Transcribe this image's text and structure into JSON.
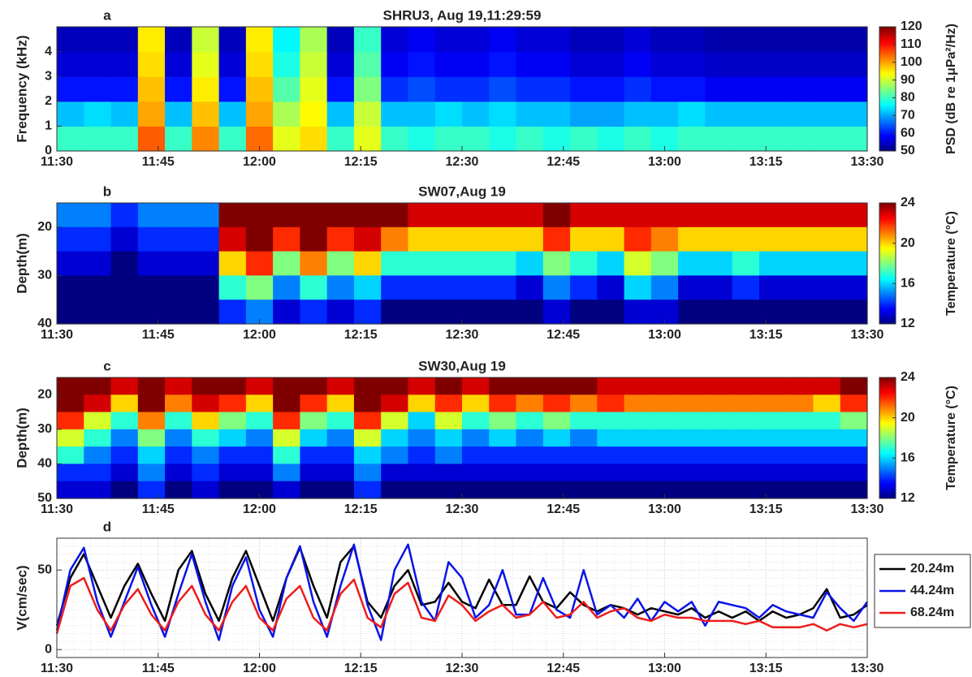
{
  "chart_data": [
    {
      "type": "heatmap",
      "panel_label": "a",
      "title": "SHRU3, Aug 19,11:29:59",
      "y_label": "Frequency (kHz)",
      "colorbar_label": "PSD (dB re 1μPa²/Hz)",
      "colormap": "jet",
      "xlim": [
        690,
        810
      ],
      "xticks": [
        {
          "value": 690,
          "label": "11:30"
        },
        {
          "value": 705,
          "label": "11:45"
        },
        {
          "value": 720,
          "label": "12:00"
        },
        {
          "value": 735,
          "label": "12:15"
        },
        {
          "value": 750,
          "label": "12:30"
        },
        {
          "value": 765,
          "label": "12:45"
        },
        {
          "value": 780,
          "label": "13:00"
        },
        {
          "value": 795,
          "label": "13:15"
        },
        {
          "value": 810,
          "label": "13:30"
        }
      ],
      "ylim": [
        0,
        5
      ],
      "yticks": [
        0,
        1,
        2,
        3,
        4
      ],
      "yreverse": false,
      "clim": [
        50,
        120
      ],
      "cticks": [
        50,
        60,
        70,
        80,
        90,
        100,
        110,
        120
      ],
      "xbins": [
        690,
        694,
        698,
        702,
        706,
        710,
        714,
        718,
        722,
        726,
        730,
        734,
        738,
        742,
        746,
        750,
        754,
        758,
        762,
        766,
        770,
        774,
        778,
        782,
        786,
        790,
        794,
        798,
        802,
        806,
        810
      ],
      "ybins": [
        0,
        1,
        2,
        3,
        4,
        5
      ],
      "z": [
        [
          80,
          80,
          80,
          105,
          80,
          102,
          80,
          104,
          92,
          96,
          80,
          92,
          80,
          78,
          80,
          80,
          78,
          80,
          78,
          80,
          78,
          80,
          78,
          80,
          80,
          80,
          80,
          80,
          80,
          80
        ],
        [
          72,
          74,
          72,
          100,
          72,
          98,
          72,
          100,
          88,
          94,
          72,
          90,
          72,
          72,
          74,
          72,
          74,
          72,
          72,
          70,
          70,
          72,
          72,
          74,
          72,
          72,
          72,
          72,
          72,
          72
        ],
        [
          60,
          60,
          60,
          98,
          60,
          95,
          60,
          98,
          82,
          92,
          60,
          85,
          62,
          64,
          62,
          62,
          64,
          62,
          62,
          60,
          60,
          62,
          60,
          60,
          58,
          58,
          58,
          58,
          58,
          58
        ],
        [
          56,
          56,
          56,
          96,
          56,
          92,
          56,
          96,
          78,
          90,
          56,
          82,
          58,
          60,
          58,
          58,
          60,
          58,
          58,
          56,
          56,
          58,
          56,
          56,
          55,
          55,
          55,
          55,
          55,
          55
        ],
        [
          54,
          54,
          54,
          95,
          54,
          90,
          54,
          95,
          76,
          88,
          54,
          80,
          56,
          58,
          56,
          56,
          58,
          56,
          56,
          54,
          54,
          56,
          54,
          54,
          53,
          53,
          53,
          53,
          53,
          53
        ]
      ]
    },
    {
      "type": "heatmap",
      "panel_label": "b",
      "title": "SW07,Aug 19",
      "y_label": "Depth(m)",
      "colorbar_label": "Temperature (°C)",
      "colormap": "jet",
      "xlim": [
        690,
        810
      ],
      "xticks": [
        {
          "value": 690,
          "label": "11:30"
        },
        {
          "value": 705,
          "label": "11:45"
        },
        {
          "value": 720,
          "label": "12:00"
        },
        {
          "value": 735,
          "label": "12:15"
        },
        {
          "value": 750,
          "label": "12:30"
        },
        {
          "value": 765,
          "label": "12:45"
        },
        {
          "value": 780,
          "label": "13:00"
        },
        {
          "value": 795,
          "label": "13:15"
        },
        {
          "value": 810,
          "label": "13:30"
        }
      ],
      "ylim": [
        15,
        40
      ],
      "yticks": [
        20,
        30,
        40
      ],
      "yreverse": true,
      "clim": [
        12,
        24
      ],
      "cticks": [
        12,
        16,
        20,
        24
      ],
      "xbins": [
        690,
        694,
        698,
        702,
        706,
        710,
        714,
        718,
        722,
        726,
        730,
        734,
        738,
        742,
        746,
        750,
        754,
        758,
        762,
        766,
        770,
        774,
        778,
        782,
        786,
        790,
        794,
        798,
        802,
        806,
        810
      ],
      "ybins": [
        15,
        20,
        25,
        30,
        35,
        40
      ],
      "z": [
        [
          15,
          15,
          14,
          15,
          15,
          15,
          24,
          24,
          24,
          24,
          24,
          24,
          24,
          23,
          23,
          23,
          23,
          23,
          24,
          23,
          23,
          23,
          23,
          23,
          23,
          23,
          23,
          23,
          23,
          23
        ],
        [
          14,
          14,
          13,
          14,
          14,
          14,
          23,
          24,
          22,
          24,
          22,
          23,
          21,
          20,
          20,
          20,
          20,
          20,
          22,
          20,
          20,
          22,
          21,
          20,
          20,
          20,
          20,
          20,
          20,
          20
        ],
        [
          13,
          13,
          12,
          13,
          13,
          13,
          20,
          22,
          18,
          21,
          18,
          20,
          17,
          17,
          17,
          17,
          17,
          16,
          18,
          17,
          16,
          19,
          18,
          16,
          16,
          17,
          16,
          16,
          16,
          16
        ],
        [
          12,
          12,
          12,
          12,
          12,
          12,
          17,
          18,
          15,
          17,
          15,
          16,
          14,
          14,
          14,
          14,
          14,
          13,
          15,
          14,
          13,
          16,
          15,
          13,
          13,
          14,
          13,
          13,
          13,
          13
        ],
        [
          12,
          12,
          12,
          12,
          12,
          12,
          14,
          15,
          13,
          14,
          13,
          14,
          12,
          12,
          12,
          12,
          12,
          12,
          13,
          12,
          12,
          13,
          13,
          12,
          12,
          12,
          12,
          12,
          12,
          12
        ]
      ]
    },
    {
      "type": "heatmap",
      "panel_label": "c",
      "title": "SW30,Aug 19",
      "y_label": "Depth(m)",
      "colorbar_label": "Temperature (°C)",
      "colormap": "jet",
      "xlim": [
        690,
        810
      ],
      "xticks": [
        {
          "value": 690,
          "label": "11:30"
        },
        {
          "value": 705,
          "label": "11:45"
        },
        {
          "value": 720,
          "label": "12:00"
        },
        {
          "value": 735,
          "label": "12:15"
        },
        {
          "value": 750,
          "label": "12:30"
        },
        {
          "value": 765,
          "label": "12:45"
        },
        {
          "value": 780,
          "label": "13:00"
        },
        {
          "value": 795,
          "label": "13:15"
        },
        {
          "value": 810,
          "label": "13:30"
        }
      ],
      "ylim": [
        15,
        50
      ],
      "yticks": [
        20,
        30,
        40,
        50
      ],
      "yreverse": true,
      "clim": [
        12,
        24
      ],
      "cticks": [
        12,
        16,
        20,
        24
      ],
      "xbins": [
        690,
        694,
        698,
        702,
        706,
        710,
        714,
        718,
        722,
        726,
        730,
        734,
        738,
        742,
        746,
        750,
        754,
        758,
        762,
        766,
        770,
        774,
        778,
        782,
        786,
        790,
        794,
        798,
        802,
        806,
        810
      ],
      "ybins": [
        15,
        20,
        25,
        30,
        35,
        40,
        45,
        50
      ],
      "z": [
        [
          24,
          24,
          23,
          24,
          23,
          24,
          24,
          23,
          24,
          24,
          23,
          24,
          24,
          23,
          24,
          23,
          24,
          24,
          24,
          24,
          23,
          23,
          23,
          23,
          23,
          23,
          23,
          23,
          23,
          24
        ],
        [
          24,
          23,
          20,
          24,
          21,
          23,
          22,
          20,
          24,
          22,
          20,
          24,
          23,
          20,
          22,
          20,
          22,
          21,
          22,
          21,
          22,
          21,
          21,
          21,
          21,
          21,
          21,
          21,
          20,
          22
        ],
        [
          22,
          19,
          17,
          21,
          17,
          20,
          18,
          17,
          22,
          18,
          17,
          22,
          19,
          16,
          19,
          17,
          18,
          17,
          18,
          17,
          17,
          17,
          17,
          17,
          17,
          17,
          17,
          17,
          17,
          18
        ],
        [
          19,
          17,
          15,
          18,
          15,
          17,
          16,
          15,
          19,
          16,
          15,
          19,
          16,
          15,
          16,
          15,
          16,
          15,
          16,
          15,
          16,
          16,
          16,
          16,
          16,
          16,
          16,
          16,
          16,
          16
        ],
        [
          17,
          15,
          14,
          16,
          14,
          15,
          14,
          14,
          17,
          14,
          14,
          16,
          15,
          14,
          15,
          14,
          14,
          14,
          14,
          14,
          14,
          14,
          14,
          14,
          14,
          14,
          14,
          14,
          14,
          14
        ],
        [
          14,
          14,
          13,
          15,
          13,
          14,
          13,
          13,
          15,
          13,
          13,
          15,
          13,
          13,
          13,
          13,
          13,
          13,
          13,
          13,
          13,
          13,
          13,
          13,
          13,
          13,
          13,
          13,
          13,
          13
        ],
        [
          13,
          13,
          12,
          14,
          12,
          13,
          12,
          12,
          13,
          12,
          12,
          14,
          12,
          12,
          12,
          12,
          12,
          12,
          12,
          12,
          12,
          12,
          12,
          12,
          12,
          12,
          12,
          12,
          12,
          12
        ]
      ]
    },
    {
      "type": "line",
      "panel_label": "d",
      "y_label": "V(cm/sec)",
      "grid": true,
      "legend": "outside-right",
      "xlim": [
        690,
        810
      ],
      "xticks": [
        {
          "value": 690,
          "label": "11:30"
        },
        {
          "value": 705,
          "label": "11:45"
        },
        {
          "value": 720,
          "label": "12:00"
        },
        {
          "value": 735,
          "label": "12:15"
        },
        {
          "value": 750,
          "label": "12:30"
        },
        {
          "value": 765,
          "label": "12:45"
        },
        {
          "value": 780,
          "label": "13:00"
        },
        {
          "value": 795,
          "label": "13:15"
        },
        {
          "value": 810,
          "label": "13:30"
        }
      ],
      "ylim": [
        -5,
        70
      ],
      "yticks": [
        0,
        50
      ],
      "x": [
        690,
        692,
        694,
        696,
        698,
        700,
        702,
        704,
        706,
        708,
        710,
        712,
        714,
        716,
        718,
        720,
        722,
        724,
        726,
        728,
        730,
        732,
        734,
        736,
        738,
        740,
        742,
        744,
        746,
        748,
        750,
        752,
        754,
        756,
        758,
        760,
        762,
        764,
        766,
        768,
        770,
        772,
        774,
        776,
        778,
        780,
        782,
        784,
        786,
        788,
        790,
        792,
        794,
        796,
        798,
        800,
        802,
        804,
        806,
        808,
        810
      ],
      "series": [
        {
          "name": "20.24m",
          "color": "#000000",
          "values": [
            15,
            45,
            60,
            40,
            20,
            40,
            54,
            35,
            18,
            50,
            62,
            35,
            18,
            45,
            62,
            40,
            18,
            45,
            64,
            40,
            20,
            55,
            65,
            30,
            20,
            40,
            50,
            28,
            30,
            42,
            30,
            26,
            44,
            28,
            28,
            46,
            30,
            26,
            36,
            28,
            24,
            28,
            26,
            22,
            26,
            24,
            22,
            26,
            20,
            24,
            20,
            24,
            18,
            24,
            20,
            22,
            26,
            38,
            20,
            22,
            28
          ]
        },
        {
          "name": "44.24m",
          "color": "#0a14e6",
          "values": [
            12,
            50,
            64,
            30,
            8,
            30,
            52,
            28,
            8,
            35,
            60,
            30,
            6,
            40,
            58,
            25,
            8,
            45,
            65,
            30,
            8,
            40,
            66,
            28,
            6,
            50,
            66,
            30,
            18,
            55,
            45,
            20,
            28,
            50,
            22,
            22,
            45,
            25,
            20,
            50,
            22,
            28,
            20,
            32,
            18,
            30,
            24,
            30,
            15,
            30,
            28,
            26,
            20,
            28,
            24,
            22,
            20,
            36,
            26,
            18,
            30
          ]
        },
        {
          "name": "68.24m",
          "color": "#ee1c1c",
          "values": [
            10,
            40,
            45,
            25,
            12,
            28,
            38,
            22,
            12,
            30,
            40,
            22,
            12,
            30,
            40,
            20,
            12,
            32,
            40,
            20,
            12,
            35,
            44,
            20,
            14,
            35,
            42,
            20,
            18,
            34,
            28,
            18,
            24,
            28,
            20,
            22,
            30,
            20,
            22,
            30,
            20,
            24,
            26,
            20,
            18,
            22,
            20,
            20,
            18,
            18,
            18,
            16,
            18,
            14,
            14,
            14,
            16,
            12,
            16,
            14,
            16
          ]
        }
      ]
    }
  ]
}
